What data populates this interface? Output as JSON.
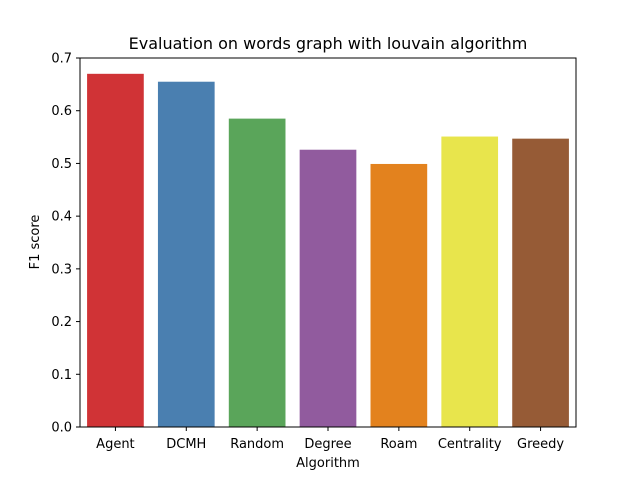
{
  "chart_data": {
    "type": "bar",
    "title": "Evaluation on words graph with louvain algorithm",
    "xlabel": "Algorithm",
    "ylabel": "F1 score",
    "categories": [
      "Agent",
      "DCMH",
      "Random",
      "Degree",
      "Roam",
      "Centrality",
      "Greedy"
    ],
    "values": [
      0.67,
      0.655,
      0.585,
      0.526,
      0.499,
      0.551,
      0.547
    ],
    "colors": [
      "#d03336",
      "#4a7fb0",
      "#5aa55a",
      "#915b9e",
      "#e3821e",
      "#e8e54c",
      "#965b36"
    ],
    "ylim": [
      0,
      0.7
    ],
    "yticks": [
      "0.0",
      "0.1",
      "0.2",
      "0.3",
      "0.4",
      "0.5",
      "0.6",
      "0.7"
    ],
    "grid": false
  }
}
